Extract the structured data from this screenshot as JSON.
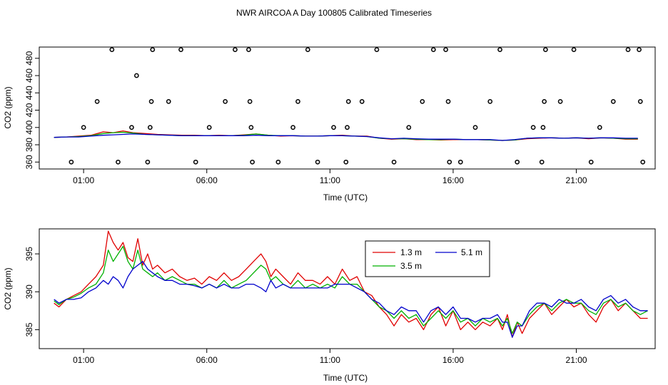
{
  "title": "NWR AIRCOA A  Day 100805  Calibrated Timeseries",
  "chart_data": [
    {
      "type": "scatter",
      "xlabel": "Time (UTC)",
      "ylabel": "CO2 (ppm)",
      "xlim": [
        -0.8,
        24.2
      ],
      "ylim": [
        352,
        493
      ],
      "xticks": [
        1,
        6,
        11,
        16,
        21
      ],
      "xticklabels": [
        "01:00",
        "06:00",
        "11:00",
        "16:00",
        "21:00"
      ],
      "yticks": [
        380,
        420,
        460
      ],
      "yticklabels": [
        "380",
        "420",
        "460"
      ],
      "yticks_minor": [
        360,
        400,
        440,
        480
      ],
      "yticklabels_minor": [
        "360",
        "400",
        "440",
        "480"
      ],
      "calibration_points": {
        "x": [
          0.5,
          1.0,
          1.55,
          2.15,
          2.4,
          2.95,
          3.15,
          3.6,
          3.7,
          3.75,
          3.8,
          4.45,
          4.95,
          5.55,
          6.1,
          6.75,
          7.15,
          7.7,
          7.75,
          7.8,
          7.85,
          8.9,
          9.5,
          9.7,
          10.1,
          10.5,
          11.15,
          11.65,
          11.7,
          11.75,
          12.3,
          12.9,
          13.6,
          14.2,
          14.75,
          15.2,
          15.7,
          15.8,
          15.85,
          16.3,
          16.9,
          17.5,
          17.9,
          18.6,
          19.25,
          19.6,
          19.65,
          19.7,
          19.75,
          20.35,
          20.9,
          21.6,
          21.95,
          22.5,
          23.1,
          23.55,
          23.6,
          23.7
        ],
        "y": [
          360,
          400,
          430,
          490,
          360,
          400,
          460,
          360,
          400,
          430,
          490,
          430,
          490,
          360,
          400,
          430,
          490,
          490,
          430,
          400,
          360,
          360,
          400,
          430,
          490,
          360,
          400,
          360,
          400,
          430,
          430,
          490,
          360,
          400,
          430,
          490,
          490,
          430,
          360,
          360,
          400,
          430,
          490,
          360,
          400,
          360,
          400,
          430,
          490,
          430,
          490,
          360,
          400,
          430,
          490,
          490,
          430,
          360
        ]
      },
      "series": [
        {
          "color": "#e00000",
          "x": [
            -0.2,
            0.3,
            0.8,
            1.3,
            1.8,
            2.2,
            2.6,
            3.0,
            3.5,
            4.0,
            4.5,
            5.0,
            5.5,
            6.0,
            6.5,
            7.0,
            7.5,
            8.0,
            8.5,
            9.0,
            9.5,
            10.0,
            10.5,
            11.0,
            11.5,
            12.0,
            12.5,
            13.0,
            13.5,
            14.0,
            14.5,
            15.0,
            15.5,
            16.0,
            16.5,
            17.0,
            17.5,
            18.0,
            18.5,
            19.0,
            19.5,
            20.0,
            20.5,
            21.0,
            21.5,
            22.0,
            22.5,
            23.0,
            23.5
          ],
          "y": [
            388.5,
            389,
            390,
            391,
            395,
            394,
            396,
            394,
            393,
            392,
            391.5,
            391,
            391,
            390.5,
            391,
            390.5,
            391.5,
            392.5,
            391,
            390,
            390.5,
            390,
            390,
            390.5,
            391,
            390,
            390,
            387.5,
            386.5,
            387,
            386,
            386,
            385.5,
            386,
            386,
            386,
            385.5,
            385,
            385.5,
            387,
            387.5,
            388,
            387.5,
            388,
            387,
            388,
            387.5,
            386.5,
            386.5
          ]
        },
        {
          "color": "#00b000",
          "x": [
            -0.2,
            0.3,
            0.8,
            1.3,
            1.8,
            2.2,
            2.6,
            3.0,
            3.5,
            4.0,
            4.5,
            5.0,
            5.5,
            6.0,
            6.5,
            7.0,
            7.5,
            8.0,
            8.5,
            9.0,
            9.5,
            10.0,
            10.5,
            11.0,
            11.5,
            12.0,
            12.5,
            13.0,
            13.5,
            14.0,
            14.5,
            15.0,
            15.5,
            16.0,
            16.5,
            17.0,
            17.5,
            18.0,
            18.5,
            19.0,
            19.5,
            20.0,
            20.5,
            21.0,
            21.5,
            22.0,
            22.5,
            23.0,
            23.5
          ],
          "y": [
            388.5,
            389,
            389.5,
            390.5,
            393,
            394,
            394.5,
            393.5,
            392,
            391.5,
            391,
            390.5,
            390.5,
            390.5,
            390.5,
            390.5,
            391,
            392.5,
            391,
            390.5,
            390.5,
            390,
            390,
            390.5,
            390.5,
            390,
            389.5,
            387.5,
            387,
            387,
            386.5,
            386,
            386,
            386.5,
            386,
            386,
            385.5,
            385,
            385.5,
            387.5,
            388,
            388,
            387.5,
            388,
            387.5,
            388,
            387.5,
            387,
            387
          ]
        },
        {
          "color": "#0000cc",
          "x": [
            -0.2,
            0.3,
            0.8,
            1.3,
            1.8,
            2.2,
            2.6,
            3.0,
            3.5,
            4.0,
            4.5,
            5.0,
            5.5,
            6.0,
            6.5,
            7.0,
            7.5,
            8.0,
            8.5,
            9.0,
            9.5,
            10.0,
            10.5,
            11.0,
            11.5,
            12.0,
            12.5,
            13.0,
            13.5,
            14.0,
            14.5,
            15.0,
            15.5,
            16.0,
            16.5,
            17.0,
            17.5,
            18.0,
            18.5,
            19.0,
            19.5,
            20.0,
            20.5,
            21.0,
            21.5,
            22.0,
            22.5,
            23.0,
            23.5
          ],
          "y": [
            388.5,
            389,
            389,
            390,
            391,
            391.5,
            392,
            392.5,
            392,
            391.5,
            391,
            390.5,
            390.5,
            390.5,
            390.5,
            390.5,
            390.5,
            391,
            390.5,
            390.5,
            390.5,
            390,
            390,
            390.5,
            390.5,
            390,
            389.5,
            388,
            387,
            387.5,
            387,
            386.5,
            386.5,
            386.5,
            386,
            386,
            386,
            385,
            386,
            387.5,
            388,
            388,
            387.5,
            388,
            387.5,
            388,
            388,
            387.5,
            387.5
          ]
        }
      ]
    },
    {
      "type": "line",
      "xlabel": "Time (UTC)",
      "ylabel": "CO2 (ppm)",
      "xlim": [
        -0.8,
        24.2
      ],
      "ylim": [
        382.5,
        398.3
      ],
      "xticks": [
        1,
        6,
        11,
        16,
        21
      ],
      "xticklabels": [
        "01:00",
        "06:00",
        "11:00",
        "16:00",
        "21:00"
      ],
      "yticks": [
        385,
        390,
        395
      ],
      "yticklabels": [
        "385",
        "390",
        "395"
      ],
      "legend": [
        {
          "label": "1.3 m",
          "color": "#e00000"
        },
        {
          "label": "3.5 m",
          "color": "#00b000"
        },
        {
          "label": "5.1 m",
          "color": "#0000cc"
        }
      ],
      "series": [
        {
          "name": "1.3 m",
          "color": "#e00000",
          "x": [
            -0.2,
            0.0,
            0.3,
            0.6,
            0.9,
            1.2,
            1.5,
            1.8,
            2.0,
            2.2,
            2.4,
            2.6,
            2.8,
            3.0,
            3.2,
            3.4,
            3.6,
            3.8,
            4.0,
            4.3,
            4.6,
            4.9,
            5.2,
            5.5,
            5.8,
            6.1,
            6.4,
            6.7,
            7.0,
            7.3,
            7.6,
            7.9,
            8.2,
            8.4,
            8.6,
            8.8,
            9.1,
            9.4,
            9.7,
            10.0,
            10.3,
            10.6,
            10.9,
            11.2,
            11.5,
            11.8,
            12.1,
            12.4,
            12.7,
            13.0,
            13.3,
            13.6,
            13.9,
            14.2,
            14.5,
            14.8,
            15.1,
            15.4,
            15.7,
            16.0,
            16.3,
            16.6,
            16.9,
            17.2,
            17.5,
            17.8,
            18.0,
            18.2,
            18.4,
            18.6,
            18.8,
            19.1,
            19.4,
            19.7,
            20.0,
            20.3,
            20.6,
            20.9,
            21.2,
            21.5,
            21.8,
            22.1,
            22.4,
            22.7,
            23.0,
            23.3,
            23.6,
            23.9
          ],
          "y": [
            388.5,
            388.0,
            389.0,
            389.5,
            390.0,
            391.0,
            392.0,
            393.5,
            398.0,
            396.5,
            395.5,
            396.5,
            394.5,
            394.0,
            397.0,
            393.5,
            395.0,
            393.0,
            393.5,
            392.5,
            393.0,
            392.0,
            391.5,
            391.8,
            391.0,
            392.0,
            391.5,
            392.5,
            391.5,
            392.0,
            393.0,
            394.0,
            395.0,
            394.0,
            392.0,
            393.0,
            392.0,
            391.0,
            392.5,
            391.5,
            391.5,
            391.0,
            392.0,
            391.0,
            393.0,
            391.5,
            392.0,
            390.0,
            389.5,
            388.0,
            387.0,
            385.5,
            387.0,
            386.0,
            386.5,
            385.0,
            387.0,
            388.0,
            385.5,
            387.5,
            385.0,
            386.0,
            385.0,
            386.0,
            385.5,
            386.5,
            385.0,
            387.0,
            384.0,
            386.0,
            384.5,
            386.5,
            387.5,
            388.5,
            387.0,
            388.0,
            389.0,
            388.0,
            388.5,
            387.0,
            386.0,
            388.0,
            389.0,
            387.5,
            388.5,
            387.5,
            386.5,
            386.5
          ]
        },
        {
          "name": "3.5 m",
          "color": "#00b000",
          "x": [
            -0.2,
            0.0,
            0.3,
            0.6,
            0.9,
            1.2,
            1.5,
            1.8,
            2.0,
            2.2,
            2.4,
            2.6,
            2.8,
            3.0,
            3.2,
            3.4,
            3.6,
            3.8,
            4.0,
            4.3,
            4.6,
            4.9,
            5.2,
            5.5,
            5.8,
            6.1,
            6.4,
            6.7,
            7.0,
            7.3,
            7.6,
            7.9,
            8.2,
            8.4,
            8.6,
            8.8,
            9.1,
            9.4,
            9.7,
            10.0,
            10.3,
            10.6,
            10.9,
            11.2,
            11.5,
            11.8,
            12.1,
            12.4,
            12.7,
            13.0,
            13.3,
            13.6,
            13.9,
            14.2,
            14.5,
            14.8,
            15.1,
            15.4,
            15.7,
            16.0,
            16.3,
            16.6,
            16.9,
            17.2,
            17.5,
            17.8,
            18.0,
            18.2,
            18.4,
            18.6,
            18.8,
            19.1,
            19.4,
            19.7,
            20.0,
            20.3,
            20.6,
            20.9,
            21.2,
            21.5,
            21.8,
            22.1,
            22.4,
            22.7,
            23.0,
            23.3,
            23.6,
            23.9
          ],
          "y": [
            388.8,
            388.3,
            389.0,
            389.3,
            389.8,
            390.5,
            391.0,
            392.5,
            395.5,
            394.0,
            395.0,
            396.0,
            394.0,
            393.0,
            395.5,
            393.0,
            392.5,
            392.0,
            392.5,
            391.5,
            392.0,
            391.5,
            391.0,
            391.0,
            390.5,
            391.0,
            390.5,
            391.5,
            390.5,
            391.0,
            391.5,
            392.5,
            393.5,
            393.0,
            391.5,
            392.0,
            391.0,
            390.5,
            391.5,
            390.5,
            391.0,
            390.5,
            391.0,
            390.5,
            392.0,
            391.0,
            391.0,
            390.0,
            389.0,
            388.0,
            387.5,
            386.5,
            387.5,
            386.5,
            387.0,
            385.5,
            386.5,
            387.5,
            386.5,
            387.5,
            386.0,
            386.5,
            385.5,
            386.5,
            386.0,
            386.5,
            385.5,
            386.5,
            384.5,
            386.0,
            385.5,
            387.0,
            388.0,
            388.5,
            387.5,
            388.5,
            389.0,
            388.5,
            388.5,
            387.5,
            387.0,
            388.5,
            389.0,
            388.0,
            388.5,
            387.5,
            387.0,
            387.5
          ]
        },
        {
          "name": "5.1 m",
          "color": "#0000cc",
          "x": [
            -0.2,
            0.0,
            0.3,
            0.6,
            0.9,
            1.2,
            1.5,
            1.8,
            2.0,
            2.2,
            2.4,
            2.6,
            2.8,
            3.0,
            3.2,
            3.4,
            3.6,
            3.8,
            4.0,
            4.3,
            4.6,
            4.9,
            5.2,
            5.5,
            5.8,
            6.1,
            6.4,
            6.7,
            7.0,
            7.3,
            7.6,
            7.9,
            8.2,
            8.4,
            8.6,
            8.8,
            9.1,
            9.4,
            9.7,
            10.0,
            10.3,
            10.6,
            10.9,
            11.2,
            11.5,
            11.8,
            12.1,
            12.4,
            12.7,
            13.0,
            13.3,
            13.6,
            13.9,
            14.2,
            14.5,
            14.8,
            15.1,
            15.4,
            15.7,
            16.0,
            16.3,
            16.6,
            16.9,
            17.2,
            17.5,
            17.8,
            18.0,
            18.2,
            18.4,
            18.6,
            18.8,
            19.1,
            19.4,
            19.7,
            20.0,
            20.3,
            20.6,
            20.9,
            21.2,
            21.5,
            21.8,
            22.1,
            22.4,
            22.7,
            23.0,
            23.3,
            23.6,
            23.9
          ],
          "y": [
            389.0,
            388.5,
            389.0,
            389.0,
            389.2,
            390.0,
            390.5,
            391.5,
            391.0,
            392.0,
            391.5,
            390.5,
            392.0,
            393.0,
            393.5,
            394.0,
            393.0,
            392.5,
            392.0,
            391.5,
            391.5,
            391.0,
            391.0,
            390.8,
            390.5,
            391.0,
            390.5,
            391.0,
            390.5,
            390.5,
            391.0,
            391.0,
            390.5,
            390.0,
            391.5,
            390.5,
            391.0,
            390.5,
            390.5,
            390.5,
            390.5,
            390.5,
            390.5,
            391.0,
            391.0,
            391.0,
            390.5,
            390.0,
            389.0,
            388.5,
            387.5,
            387.0,
            388.0,
            387.5,
            387.5,
            386.0,
            387.5,
            388.0,
            387.0,
            388.0,
            386.5,
            386.5,
            386.0,
            386.5,
            386.5,
            387.0,
            386.0,
            386.0,
            384.0,
            385.5,
            385.5,
            387.5,
            388.5,
            388.5,
            388.0,
            389.0,
            388.5,
            388.5,
            389.0,
            388.0,
            387.5,
            389.0,
            389.5,
            388.5,
            389.0,
            388.0,
            387.5,
            387.5
          ]
        }
      ]
    }
  ]
}
